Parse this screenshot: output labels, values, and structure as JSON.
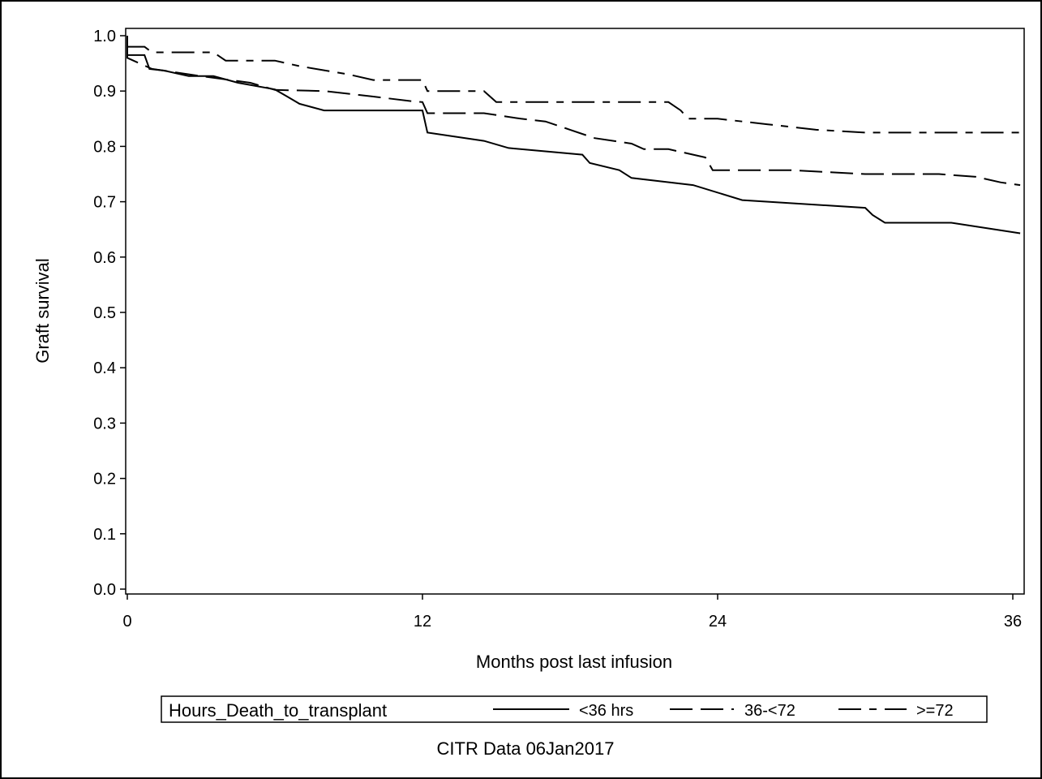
{
  "chart_data": {
    "type": "line",
    "xlabel": "Months post last infusion",
    "ylabel": "Graft survival",
    "xlim": [
      0,
      36.3
    ],
    "ylim": [
      0,
      1.0
    ],
    "xticks": [
      0,
      12,
      24,
      36
    ],
    "xtick_labels": [
      "0",
      "12",
      "24",
      "36"
    ],
    "yticks": [
      0,
      0.1,
      0.2,
      0.3,
      0.4,
      0.5,
      0.6,
      0.7,
      0.8,
      0.9,
      1.0
    ],
    "ytick_labels": [
      "0.0",
      "0.1",
      "0.2",
      "0.3",
      "0.4",
      "0.5",
      "0.6",
      "0.7",
      "0.8",
      "0.9",
      "1.0"
    ],
    "grid": false,
    "legend": {
      "title": "Hours_Death_to_transplant",
      "placement": "bottom"
    },
    "footnote": "CITR Data 06Jan2017",
    "series": [
      {
        "name": "<36 hrs",
        "style": "solid",
        "points": [
          [
            0,
            1.0
          ],
          [
            0,
            0.965
          ],
          [
            0.3,
            0.965
          ],
          [
            0.7,
            0.965
          ],
          [
            0.9,
            0.94
          ],
          [
            1.5,
            0.937
          ],
          [
            2.5,
            0.927
          ],
          [
            3.5,
            0.927
          ],
          [
            4.5,
            0.915
          ],
          [
            6.0,
            0.903
          ],
          [
            6.5,
            0.89
          ],
          [
            7.0,
            0.877
          ],
          [
            8.0,
            0.865
          ],
          [
            12.0,
            0.865
          ],
          [
            12.2,
            0.825
          ],
          [
            14.5,
            0.81
          ],
          [
            15.5,
            0.797
          ],
          [
            18.5,
            0.785
          ],
          [
            18.8,
            0.77
          ],
          [
            20.0,
            0.757
          ],
          [
            20.5,
            0.743
          ],
          [
            23.0,
            0.73
          ],
          [
            25.0,
            0.703
          ],
          [
            30.0,
            0.689
          ],
          [
            30.3,
            0.676
          ],
          [
            30.8,
            0.662
          ],
          [
            33.5,
            0.662
          ],
          [
            36.3,
            0.643
          ]
        ]
      },
      {
        "name": "36-<72",
        "style": "dash",
        "points": [
          [
            0,
            0.98
          ],
          [
            0,
            0.96
          ],
          [
            1.0,
            0.94
          ],
          [
            3.0,
            0.927
          ],
          [
            5.0,
            0.915
          ],
          [
            6.0,
            0.902
          ],
          [
            8.0,
            0.9
          ],
          [
            10.0,
            0.89
          ],
          [
            11.5,
            0.882
          ],
          [
            12.0,
            0.88
          ],
          [
            12.2,
            0.86
          ],
          [
            14.5,
            0.86
          ],
          [
            16.0,
            0.85
          ],
          [
            17.0,
            0.845
          ],
          [
            18.0,
            0.83
          ],
          [
            19.0,
            0.815
          ],
          [
            20.5,
            0.805
          ],
          [
            21.0,
            0.795
          ],
          [
            22.0,
            0.795
          ],
          [
            22.5,
            0.79
          ],
          [
            23.5,
            0.78
          ],
          [
            23.8,
            0.757
          ],
          [
            27.0,
            0.757
          ],
          [
            30.0,
            0.75
          ],
          [
            33.0,
            0.75
          ],
          [
            34.5,
            0.745
          ],
          [
            35.5,
            0.735
          ],
          [
            36.3,
            0.73
          ]
        ]
      },
      {
        "name": ">=72",
        "style": "short-dash",
        "points": [
          [
            0,
            0.98
          ],
          [
            0.7,
            0.98
          ],
          [
            1.0,
            0.97
          ],
          [
            3.5,
            0.97
          ],
          [
            4.0,
            0.955
          ],
          [
            6.0,
            0.955
          ],
          [
            7.0,
            0.945
          ],
          [
            9.0,
            0.93
          ],
          [
            10.0,
            0.92
          ],
          [
            12.0,
            0.92
          ],
          [
            12.2,
            0.9
          ],
          [
            14.5,
            0.9
          ],
          [
            15.0,
            0.88
          ],
          [
            22.0,
            0.88
          ],
          [
            22.5,
            0.865
          ],
          [
            22.8,
            0.85
          ],
          [
            24.0,
            0.85
          ],
          [
            26.0,
            0.84
          ],
          [
            28.0,
            0.83
          ],
          [
            30.0,
            0.825
          ],
          [
            36.3,
            0.825
          ]
        ]
      }
    ]
  }
}
